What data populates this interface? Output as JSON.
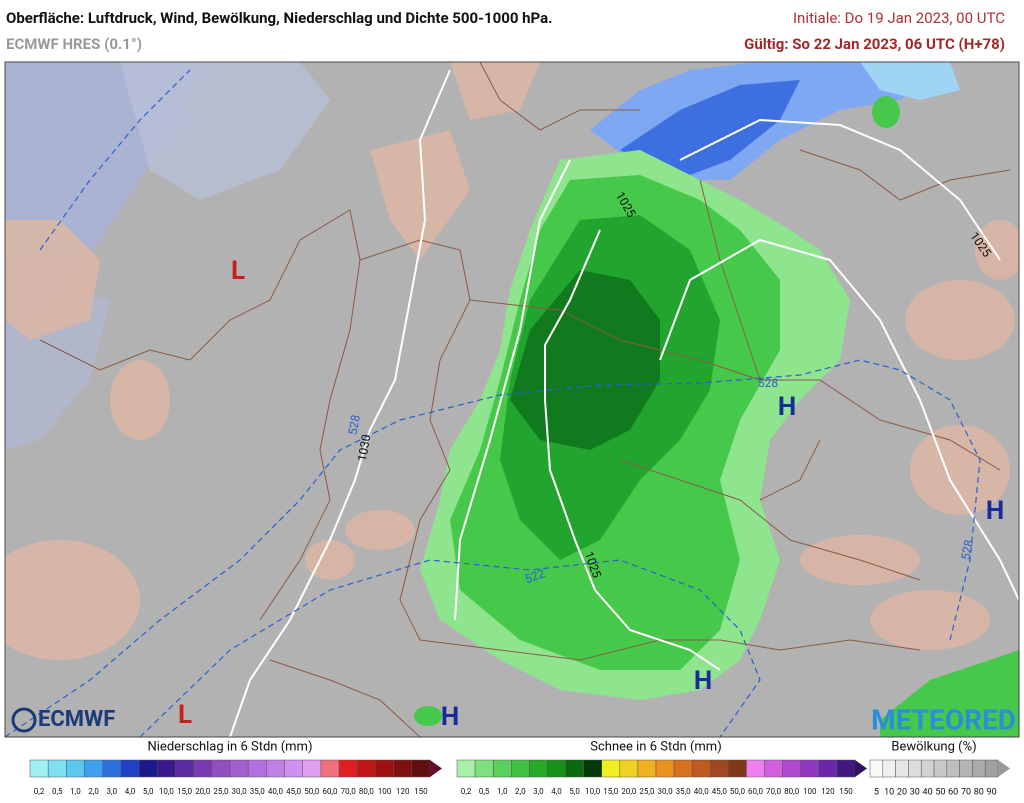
{
  "header": {
    "title": "Oberfläche: Luftdruck, Wind, Bewölkung, Niederschlag und Dichte 500-1000 hPa.",
    "model": "ECMWF HRES (0.1°)",
    "init": "Initiale: Do 19 Jan 2023, 00 UTC",
    "valid": "Gültig: So 22 Jan 2023, 06 UTC (H+78)"
  },
  "map": {
    "pressure_centers": [
      "L",
      "L",
      "H",
      "H",
      "H",
      "H"
    ],
    "isobar_labels": [
      "1030",
      "1030",
      "1025",
      "1025",
      "1025"
    ],
    "thickness_labels": [
      "528",
      "528",
      "522",
      "528"
    ]
  },
  "logos": [
    "ECMWF",
    "METEORED"
  ],
  "legends": [
    {
      "title": "Niederschlag in 6 Stdn (mm)",
      "labels": [
        "0,2",
        "0,5",
        "1,0",
        "2,0",
        "3,0",
        "4,0",
        "5,0",
        "10,0",
        "15,0",
        "20,0",
        "25,0",
        "30,0",
        "35,0",
        "40,0",
        "45,0",
        "50,0",
        "60,0",
        "70,0",
        "80,0",
        "100",
        "120",
        "150"
      ]
    },
    {
      "title": "Schnee in 6 Stdn (mm)",
      "labels": [
        "0,2",
        "0,5",
        "1,0",
        "2,0",
        "3,0",
        "4,0",
        "5,0",
        "10,0",
        "15,0",
        "20,0",
        "25,0",
        "30,0",
        "35,0",
        "40,0",
        "45,0",
        "50,0",
        "60,0",
        "70,0",
        "80,0",
        "100",
        "120",
        "150"
      ]
    },
    {
      "title": "Bewölkung (%)",
      "labels": [
        "5",
        "10",
        "20",
        "30",
        "40",
        "50",
        "60",
        "70",
        "80",
        "90"
      ]
    }
  ]
}
